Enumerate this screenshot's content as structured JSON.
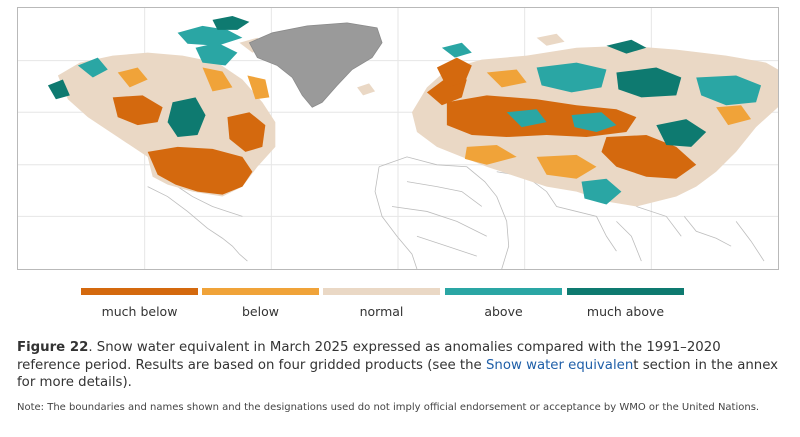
{
  "colors": {
    "much_below": "#d4690e",
    "below": "#f0a339",
    "normal": "#ead8c5",
    "above": "#2aa6a4",
    "much_above": "#0e7a70",
    "greenland": "#9a9a9a",
    "boundaries": "#bdbdbd",
    "gridlines": "#e6e6e6"
  },
  "legend": [
    {
      "key": "much_below",
      "label": "much below"
    },
    {
      "key": "below",
      "label": "below"
    },
    {
      "key": "normal",
      "label": "normal"
    },
    {
      "key": "above",
      "label": "above"
    },
    {
      "key": "much_above",
      "label": "much above"
    }
  ],
  "caption": {
    "figure_label": "Figure 22",
    "text_1": ". Snow water equivalent in March 2025 expressed as anomalies compared with the 1991–2020 reference period. Results are based on four gridded products (see the ",
    "link_text": "Snow water equivalen",
    "text_2": "t section in the annex for more details)."
  },
  "note": "Note: The boundaries and names shown and the designations used do not imply official endorsement or acceptance by WMO or the United Nations."
}
